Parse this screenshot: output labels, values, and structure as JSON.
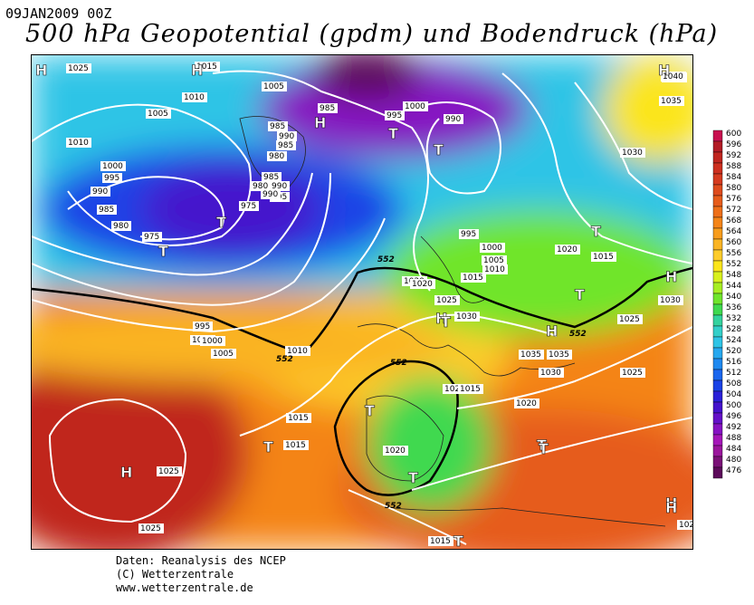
{
  "header": {
    "timestamp": "09JAN2009 00Z",
    "title": "500 hPa Geopotential (gpdm) und Bodendruck (hPa)"
  },
  "colorbar": {
    "levels": [
      "600",
      "596",
      "592",
      "588",
      "584",
      "580",
      "576",
      "572",
      "568",
      "564",
      "560",
      "556",
      "552",
      "548",
      "544",
      "540",
      "536",
      "532",
      "528",
      "524",
      "520",
      "516",
      "512",
      "508",
      "504",
      "500",
      "496",
      "492",
      "488",
      "484",
      "480",
      "476"
    ],
    "colors": [
      "#c8104f",
      "#b21b25",
      "#c0251f",
      "#cd2f1f",
      "#d53a1f",
      "#de4b1d",
      "#e65c1b",
      "#ee6f19",
      "#f48418",
      "#f79c1c",
      "#fab424",
      "#fdcc2a",
      "#fbe51c",
      "#d8f01d",
      "#a7ee22",
      "#6fe52b",
      "#3fd94f",
      "#34d29e",
      "#33cfc9",
      "#2ec4e6",
      "#26a8ef",
      "#1e89f0",
      "#1a66ee",
      "#1a42e6",
      "#2a20d8",
      "#4412cc",
      "#6410c8",
      "#8612c2",
      "#a516b8",
      "#9a159c",
      "#7a1077",
      "#5c0a5a"
    ]
  },
  "isobar_labels": [
    "1015",
    "1010",
    "1005",
    "1010",
    "1000",
    "995",
    "990",
    "985",
    "980",
    "975",
    "985",
    "990",
    "985",
    "980",
    "990",
    "995",
    "975",
    "980",
    "985",
    "990",
    "995",
    "1000",
    "1005",
    "1010",
    "1015",
    "1005",
    "1000",
    "995",
    "985",
    "990",
    "1000",
    "995",
    "1000",
    "1005",
    "1010",
    "1015",
    "1020",
    "1020",
    "1025",
    "1030",
    "1035",
    "1035",
    "1030",
    "1020",
    "1015",
    "1030",
    "1025",
    "1025",
    "1030",
    "1020",
    "1025",
    "1040",
    "1035",
    "1030",
    "1025",
    "1015",
    "1015",
    "1020",
    "1025",
    "1015",
    "1025",
    "102"
  ],
  "geopotential_labels": [
    "552",
    "552",
    "552",
    "552",
    "552"
  ],
  "pressure_centers": [
    "H",
    "H",
    "H",
    "T",
    "T",
    "T",
    "H",
    "T",
    "T",
    "T",
    "T",
    "H",
    "T",
    "H",
    "H",
    "T",
    "T",
    "T",
    "H",
    "T",
    "T",
    "H",
    "H"
  ],
  "credits": {
    "line1": "Daten: Reanalysis des NCEP",
    "line2": "(C) Wetterzentrale",
    "line3": "www.wetterzentrale.de"
  }
}
